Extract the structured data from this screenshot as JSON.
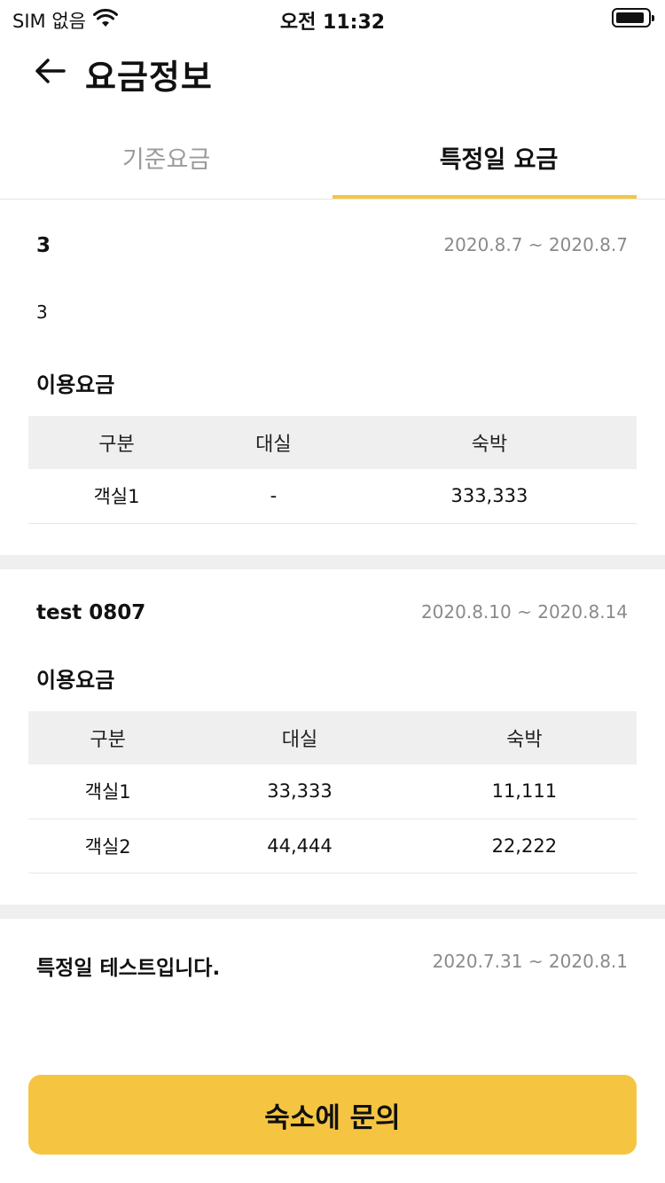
{
  "status_bar": {
    "carrier": "SIM 없음",
    "time": "오전 11:32"
  },
  "header": {
    "title": "요금정보"
  },
  "tabs": [
    {
      "label": "기준요금",
      "active": false
    },
    {
      "label": "특정일 요금",
      "active": true
    }
  ],
  "sections": [
    {
      "name": "3",
      "date_range": "2020.8.7 ~ 2020.8.7",
      "description": "3",
      "fee_label": "이용요금",
      "table": {
        "headers": [
          "구분",
          "대실",
          "숙박"
        ],
        "rows": [
          [
            "객실1",
            "-",
            "333,333"
          ]
        ]
      }
    },
    {
      "name": "test 0807",
      "date_range": "2020.8.10 ~ 2020.8.14",
      "fee_label": "이용요금",
      "table": {
        "headers": [
          "구분",
          "대실",
          "숙박"
        ],
        "rows": [
          [
            "객실1",
            "33,333",
            "11,111"
          ],
          [
            "객실2",
            "44,444",
            "22,222"
          ]
        ]
      }
    },
    {
      "name": "특정일 테스트입니다.",
      "date_range": "2020.7.31 ~ 2020.8.1"
    }
  ],
  "bottom": {
    "inquiry_label": "숙소에 문의"
  },
  "colors": {
    "accent": "#f5c542",
    "separator": "#efefef",
    "muted_text": "#9b9b9b"
  },
  "icons": {
    "back": "arrow-left-icon",
    "wifi": "wifi-icon",
    "battery": "battery-icon"
  }
}
